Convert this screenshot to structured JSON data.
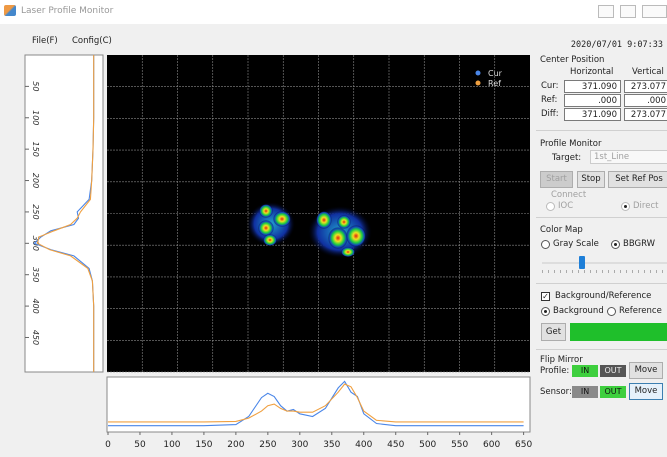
{
  "window": {
    "title": "Laser Profile Monitor"
  },
  "menu": [
    "File(F)",
    "Config(C)"
  ],
  "timestamp": "2020/07/01 9:07:33",
  "center_position": {
    "title": "Center Position",
    "columns": [
      "Horizontal",
      "Vertical"
    ],
    "rows": [
      [
        "Cur:",
        "371.090",
        "273.077"
      ],
      [
        "Ref:",
        ".000",
        ".000"
      ],
      [
        "Diff:",
        "371.090",
        "273.077"
      ]
    ]
  },
  "profile_monitor": {
    "title": "Profile Monitor",
    "target_label": "Target:",
    "target": "1st_Line",
    "buttons": [
      "Start",
      "Stop",
      "Set Ref Pos"
    ],
    "connect_label": "Connect",
    "connect_options": [
      "IOC",
      "Direct"
    ]
  },
  "color_map": {
    "title": "Color Map",
    "options": [
      "Gray Scale",
      "BBGRW"
    ]
  },
  "background_reference": {
    "label": "Background/Reference",
    "options": [
      "Background",
      "Reference"
    ],
    "button": "Get"
  },
  "flip_mirror": {
    "title": "Flip Mirror",
    "rows": [
      {
        "label": "Profile:",
        "in": "IN",
        "out": "OUT",
        "button": "Move"
      },
      {
        "label": "Sensor:",
        "in": "IN",
        "out": "OUT",
        "button": "Move"
      }
    ]
  },
  "horizontal_profile": {
    "type": "line",
    "x": [
      0,
      50,
      100,
      150,
      200,
      220,
      240,
      250,
      260,
      270,
      280,
      290,
      300,
      320,
      340,
      360,
      370,
      380,
      390,
      400,
      420,
      450,
      500,
      550,
      600,
      650
    ],
    "xlim": [
      0,
      660
    ],
    "xticks": [
      0,
      50,
      100,
      150,
      200,
      250,
      300,
      350,
      400,
      450,
      500,
      550,
      600,
      650
    ],
    "ylim": [
      0,
      100
    ],
    "series": [
      {
        "name": "Cur",
        "color": "#4a86e8",
        "values": [
          8,
          8,
          8,
          8,
          10,
          25,
          60,
          68,
          62,
          45,
          35,
          38,
          30,
          25,
          40,
          78,
          90,
          70,
          62,
          30,
          12,
          8,
          8,
          8,
          8,
          8
        ]
      },
      {
        "name": "Ref",
        "color": "#f0a040",
        "values": [
          15,
          15,
          15,
          15,
          16,
          22,
          35,
          45,
          48,
          40,
          35,
          35,
          33,
          33,
          45,
          70,
          85,
          80,
          60,
          35,
          18,
          15,
          15,
          15,
          15,
          15
        ]
      }
    ]
  },
  "vertical_profile": {
    "type": "line",
    "x": [
      0,
      50,
      100,
      150,
      200,
      230,
      250,
      260,
      270,
      280,
      290,
      300,
      310,
      320,
      340,
      360,
      400,
      450,
      505
    ],
    "xlim": [
      0,
      505
    ],
    "xticks": [
      50,
      100,
      150,
      200,
      250,
      300,
      350,
      400,
      450
    ],
    "ylim": [
      0,
      100
    ],
    "series": [
      {
        "name": "Cur",
        "color": "#4a86e8",
        "values": [
          5,
          5,
          5,
          6,
          8,
          12,
          30,
          28,
          35,
          70,
          85,
          95,
          70,
          35,
          12,
          7,
          5,
          5,
          5
        ]
      },
      {
        "name": "Ref",
        "color": "#f0a040",
        "values": [
          5,
          5,
          5,
          6,
          8,
          10,
          25,
          30,
          40,
          65,
          88,
          90,
          72,
          40,
          14,
          7,
          5,
          5,
          5
        ]
      }
    ]
  }
}
